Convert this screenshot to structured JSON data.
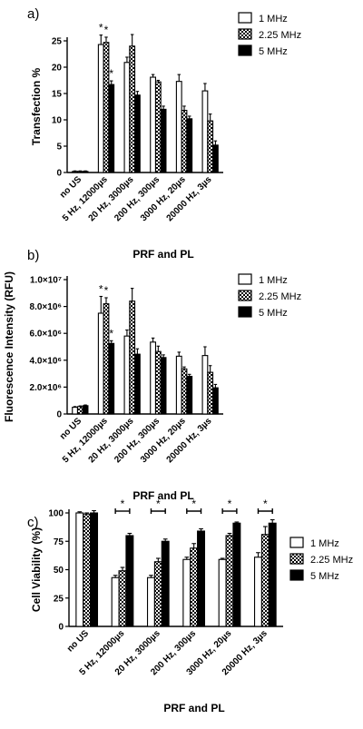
{
  "chart_data": [
    {
      "panel": "a)",
      "type": "bar",
      "ylabel": "Transfection %",
      "xlabel": "PRF and  PL",
      "ylim": [
        0,
        25
      ],
      "yticks": [
        "0",
        "5",
        "10",
        "15",
        "20",
        "25"
      ],
      "categories": [
        "no US",
        "5 Hz, 12000µs",
        "20 Hz, 3000µs",
        "200 Hz, 300µs",
        "3000 Hz, 20µs",
        "20000 Hz, 3µs"
      ],
      "series": [
        {
          "name": "1 MHz",
          "values": [
            0.2,
            24.3,
            20.9,
            18.1,
            17.3,
            15.5
          ],
          "errors": [
            0.1,
            1.8,
            1.0,
            0.5,
            1.3,
            1.4
          ]
        },
        {
          "name": "2.25 MHz",
          "values": [
            0.2,
            24.7,
            24.0,
            17.2,
            11.8,
            9.8
          ],
          "errors": [
            0.1,
            1.0,
            2.2,
            0.3,
            0.8,
            1.3
          ]
        },
        {
          "name": "5 MHz",
          "values": [
            0.2,
            16.7,
            14.7,
            12.0,
            10.2,
            5.2
          ],
          "errors": [
            0.1,
            0.7,
            0.7,
            0.6,
            0.5,
            0.8
          ]
        }
      ],
      "annotations": [
        "*",
        "*",
        "*"
      ],
      "legend": "top-right"
    },
    {
      "panel": "b)",
      "type": "bar",
      "ylabel": "Fluorescence  Intensity (RFU)",
      "xlabel": "PRF and PL",
      "ylim": [
        0,
        10000000
      ],
      "yticks": [
        "0",
        "2.0×10⁶",
        "4.0×10⁶",
        "6.0×10⁶",
        "8.0×10⁶",
        "1.0×10⁷"
      ],
      "categories": [
        "no US",
        "5 Hz, 12000µs",
        "20 Hz, 3000µs",
        "200 Hz, 300µs",
        "3000 Hz, 20µs",
        "20000 Hz, 3µs"
      ],
      "series": [
        {
          "name": "1 MHz",
          "values": [
            500000,
            7500000,
            5800000,
            5350000,
            4300000,
            4350000
          ],
          "errors": [
            50000,
            1250000,
            450000,
            300000,
            300000,
            650000
          ]
        },
        {
          "name": "2.25 MHz",
          "values": [
            550000,
            8200000,
            8400000,
            4650000,
            3350000,
            3100000
          ],
          "errors": [
            50000,
            450000,
            950000,
            400000,
            150000,
            500000
          ]
        },
        {
          "name": "5 MHz",
          "values": [
            620000,
            5250000,
            4450000,
            4200000,
            2800000,
            1950000
          ],
          "errors": [
            50000,
            200000,
            400000,
            200000,
            150000,
            250000
          ]
        }
      ],
      "annotations": [
        "*",
        "*",
        "*"
      ],
      "legend": "top-right"
    },
    {
      "panel": "c)",
      "type": "bar",
      "ylabel": "Cell Viability (%)",
      "xlabel": "PRF and PL",
      "ylim": [
        0,
        100
      ],
      "yticks": [
        "0",
        "25",
        "50",
        "75",
        "100"
      ],
      "categories": [
        "no US",
        "5 Hz, 12000µs",
        "20 Hz, 3000µs",
        "200 Hz, 300µs",
        "3000 Hz, 20µs",
        "20000 Hz, 3µs"
      ],
      "series": [
        {
          "name": "1 MHz",
          "values": [
            100,
            43,
            43,
            59,
            59,
            61
          ],
          "errors": [
            1,
            2,
            2,
            2,
            1,
            4
          ]
        },
        {
          "name": "2.25 MHz",
          "values": [
            99,
            49,
            57,
            69,
            80,
            81
          ],
          "errors": [
            1,
            3,
            3,
            4,
            2,
            7
          ]
        },
        {
          "name": "5 MHz",
          "values": [
            100,
            80,
            75,
            84,
            91,
            91
          ],
          "errors": [
            2,
            2,
            2,
            2,
            1,
            3
          ]
        }
      ],
      "annotations": [
        "*",
        "*",
        "*",
        "*",
        "*"
      ],
      "legend": "top-right"
    }
  ]
}
